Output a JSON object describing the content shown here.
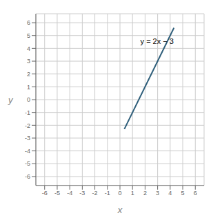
{
  "chart_data": {
    "type": "line",
    "xlabel": "x",
    "ylabel": "y",
    "x": [
      0.35,
      4.3
    ],
    "values": [
      -2.3,
      5.6
    ],
    "color": "#2E5E7A",
    "xlim": [
      -6.7,
      6.7
    ],
    "ylim": [
      -6.7,
      6.7
    ],
    "xticks": [
      -6,
      -5,
      -4,
      -3,
      -2,
      -1,
      0,
      1,
      2,
      3,
      4,
      5,
      6
    ],
    "yticks": [
      -6,
      -5,
      -4,
      -3,
      -2,
      -1,
      0,
      1,
      2,
      3,
      4,
      5,
      6
    ],
    "grid": true,
    "annotations": [
      {
        "text": "y = 2x − 3",
        "x": 1.35,
        "y": 4.55
      }
    ]
  }
}
